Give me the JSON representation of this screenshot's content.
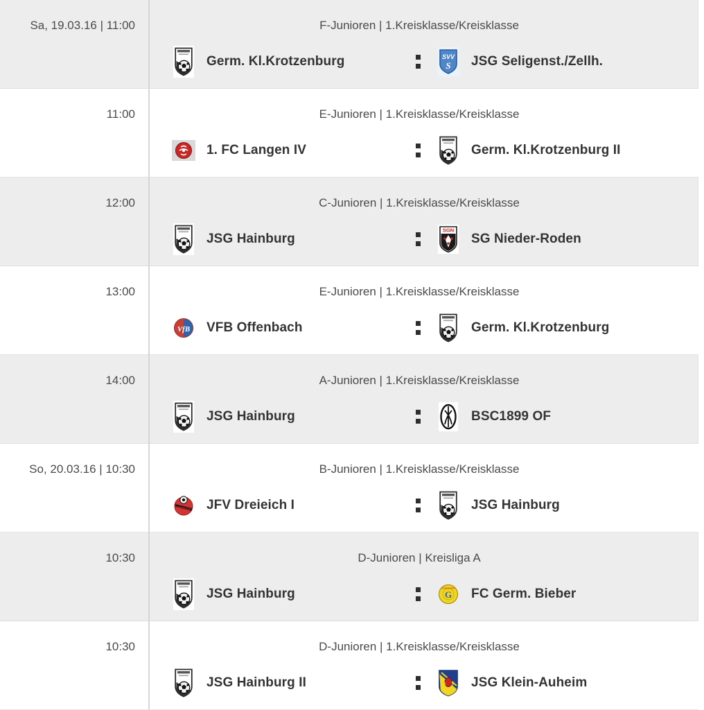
{
  "colors": {
    "row_bg": "#ffffff",
    "row_alt_bg": "#ededed",
    "divider": "#d6d6d6",
    "row_border": "#e4e4e4",
    "muted_text": "#4a4a4a",
    "team_text": "#333333",
    "colon": "#2e2e2e"
  },
  "separator_icon": "vs-colon",
  "rows": [
    {
      "shaded": true,
      "datetime": "Sa, 19.03.16 | 11:00",
      "league": "F-Junioren | 1.Kreisklasse/Kreisklasse",
      "home": {
        "name": "Germ. Kl.Krotzenburg",
        "logo": "crest-germania"
      },
      "away": {
        "name": "JSG Seligenst./Zellh.",
        "logo": "shield-svv"
      }
    },
    {
      "shaded": false,
      "datetime": "11:00",
      "league": "E-Junioren | 1.Kreisklasse/Kreisklasse",
      "home": {
        "name": "1. FC Langen IV",
        "logo": "round-langen"
      },
      "away": {
        "name": "Germ. Kl.Krotzenburg II",
        "logo": "crest-germania"
      }
    },
    {
      "shaded": true,
      "datetime": "12:00",
      "league": "C-Junioren | 1.Kreisklasse/Kreisklasse",
      "home": {
        "name": "JSG Hainburg",
        "logo": "crest-germania"
      },
      "away": {
        "name": "SG Nieder-Roden",
        "logo": "shield-sgn"
      }
    },
    {
      "shaded": false,
      "datetime": "13:00",
      "league": "E-Junioren | 1.Kreisklasse/Kreisklasse",
      "home": {
        "name": "VFB Offenbach",
        "logo": "round-vfb"
      },
      "away": {
        "name": "Germ. Kl.Krotzenburg",
        "logo": "crest-germania"
      }
    },
    {
      "shaded": true,
      "datetime": "14:00",
      "league": "A-Junioren | 1.Kreisklasse/Kreisklasse",
      "home": {
        "name": "JSG Hainburg",
        "logo": "crest-germania"
      },
      "away": {
        "name": "BSC1899 OF",
        "logo": "oval-bsc"
      }
    },
    {
      "shaded": false,
      "datetime": "So, 20.03.16 | 10:30",
      "league": "B-Junioren | 1.Kreisklasse/Kreisklasse",
      "home": {
        "name": "JFV Dreieich I",
        "logo": "round-jfv"
      },
      "away": {
        "name": "JSG Hainburg",
        "logo": "crest-germania"
      }
    },
    {
      "shaded": true,
      "datetime": "10:30",
      "league": "D-Junioren | Kreisliga A",
      "home": {
        "name": "JSG Hainburg",
        "logo": "crest-germania"
      },
      "away": {
        "name": "FC Germ. Bieber",
        "logo": "round-bieber"
      }
    },
    {
      "shaded": false,
      "datetime": "10:30",
      "league": "D-Junioren | 1.Kreisklasse/Kreisklasse",
      "home": {
        "name": "JSG Hainburg II",
        "logo": "crest-germania"
      },
      "away": {
        "name": "JSG Klein-Auheim",
        "logo": "shield-ka"
      }
    }
  ]
}
